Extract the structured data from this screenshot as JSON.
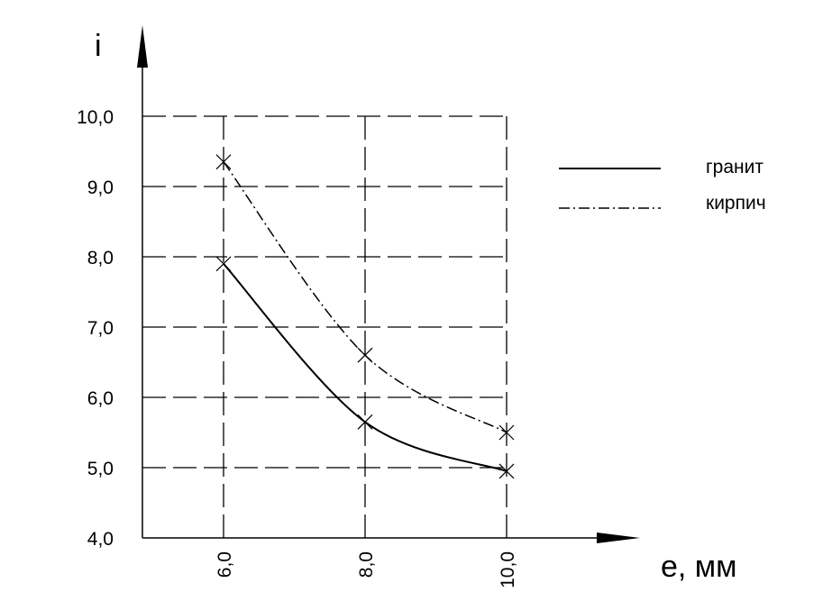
{
  "chart_data": {
    "type": "line",
    "title": "",
    "xlabel": "e, мм",
    "ylabel": "i",
    "x_ticks": [
      "6,0",
      "8,0",
      "10,0"
    ],
    "y_ticks": [
      "4,0",
      "5,0",
      "6,0",
      "7,0",
      "8,0",
      "9,0",
      "10,0"
    ],
    "xlim": [
      5.0,
      11.0
    ],
    "ylim": [
      4.0,
      10.0
    ],
    "grid": true,
    "legend_position": "top-right",
    "series": [
      {
        "name": "гранит",
        "style": "solid",
        "x": [
          6.0,
          8.0,
          10.0
        ],
        "y": [
          7.9,
          5.65,
          4.95
        ]
      },
      {
        "name": "кирпич",
        "style": "dash-dot",
        "x": [
          6.0,
          8.0,
          10.0
        ],
        "y": [
          9.35,
          6.6,
          5.5
        ]
      }
    ]
  }
}
